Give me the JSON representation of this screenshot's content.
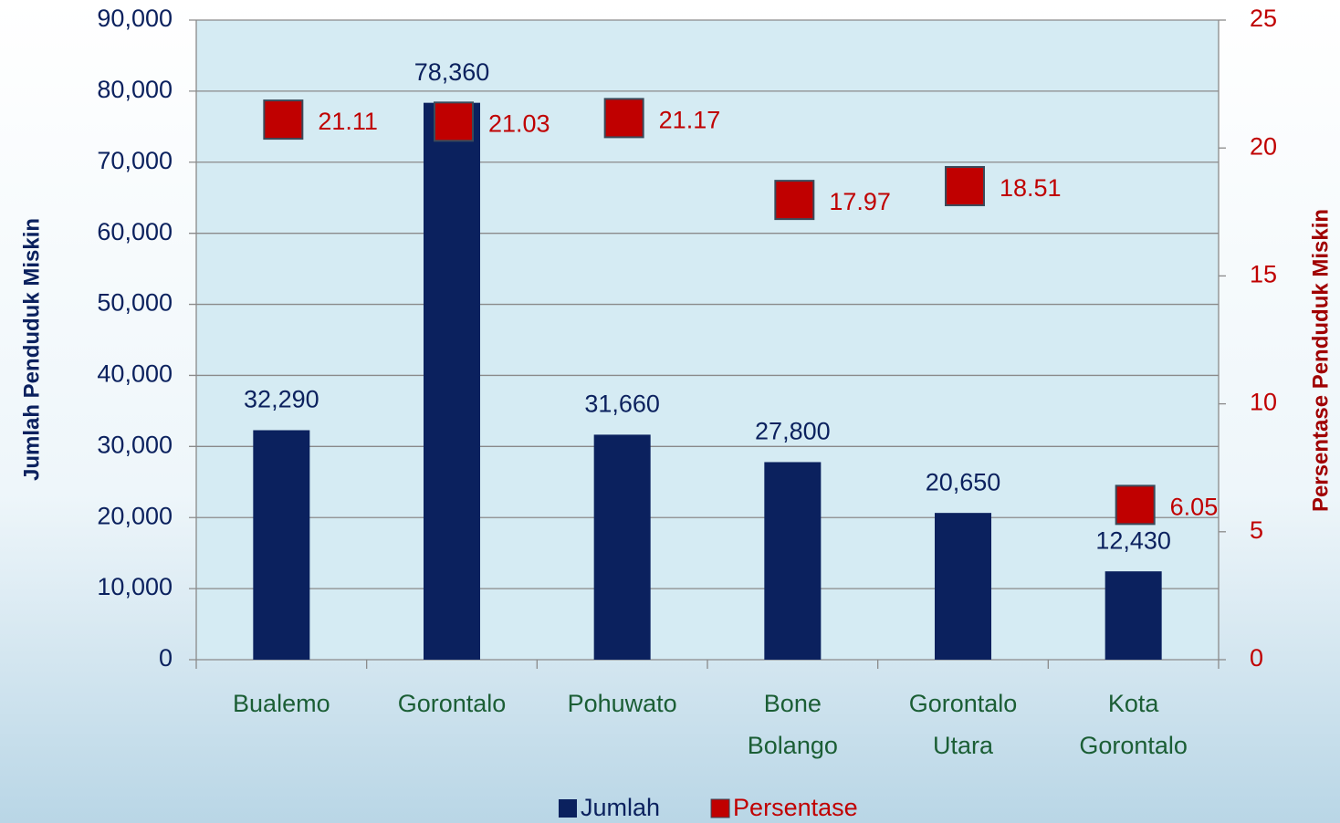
{
  "chart_data": {
    "type": "bar",
    "categories": [
      "Bualemo",
      "Gorontalo",
      "Pohuwato",
      "Bone Bolango",
      "Gorontalo Utara",
      "Kota Gorontalo"
    ],
    "series": [
      {
        "name": "Jumlah",
        "color": "#0b215e",
        "values": [
          32290,
          78360,
          31660,
          27800,
          20650,
          12430
        ],
        "value_labels": [
          "32,290",
          "78,360",
          "31,660",
          "27,800",
          "20,650",
          "12,430"
        ]
      },
      {
        "name": "Persentase",
        "color": "#c00000",
        "axis": "y2",
        "values": [
          21.11,
          21.03,
          21.17,
          17.97,
          18.51,
          6.05
        ]
      }
    ],
    "ylabel": "Jumlah Penduduk Miskin",
    "y2label": "Persentase Penduduk Miskin",
    "ylim": [
      0,
      90000
    ],
    "yticks": [
      0,
      {
        "value": 10000,
        "label": "10,000"
      },
      {
        "value": 20000,
        "label": "20,000"
      },
      {
        "value": 30000,
        "label": "30,000"
      },
      {
        "value": 40000,
        "label": "40,000"
      },
      {
        "value": 50000,
        "label": "50,000"
      },
      {
        "value": 60000,
        "label": "60,000"
      },
      {
        "value": 70000,
        "label": "70,000"
      },
      {
        "value": 80000,
        "label": "80,000"
      },
      {
        "value": 90000,
        "label": "90,000"
      }
    ],
    "y2lim": [
      0,
      25
    ],
    "y2ticks": [
      0,
      5,
      10,
      15,
      20,
      25
    ],
    "grid": true,
    "legend": "bottom"
  }
}
